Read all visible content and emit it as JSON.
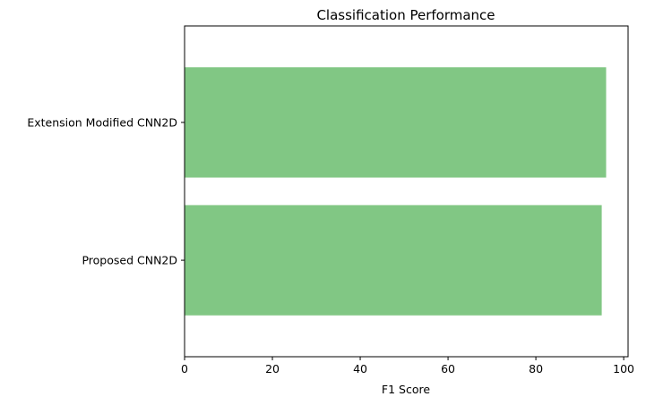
{
  "chart_data": {
    "type": "bar",
    "orientation": "horizontal",
    "title": "Classification Performance",
    "xlabel": "F1 Score",
    "ylabel": "",
    "xlim": [
      0,
      101
    ],
    "xticks": [
      0,
      20,
      40,
      60,
      80,
      100
    ],
    "categories": [
      "Extension Modified CNN2D",
      "Proposed CNN2D"
    ],
    "values": [
      96,
      95
    ],
    "bar_color": "#81c784",
    "grid": false,
    "legend": "none"
  }
}
